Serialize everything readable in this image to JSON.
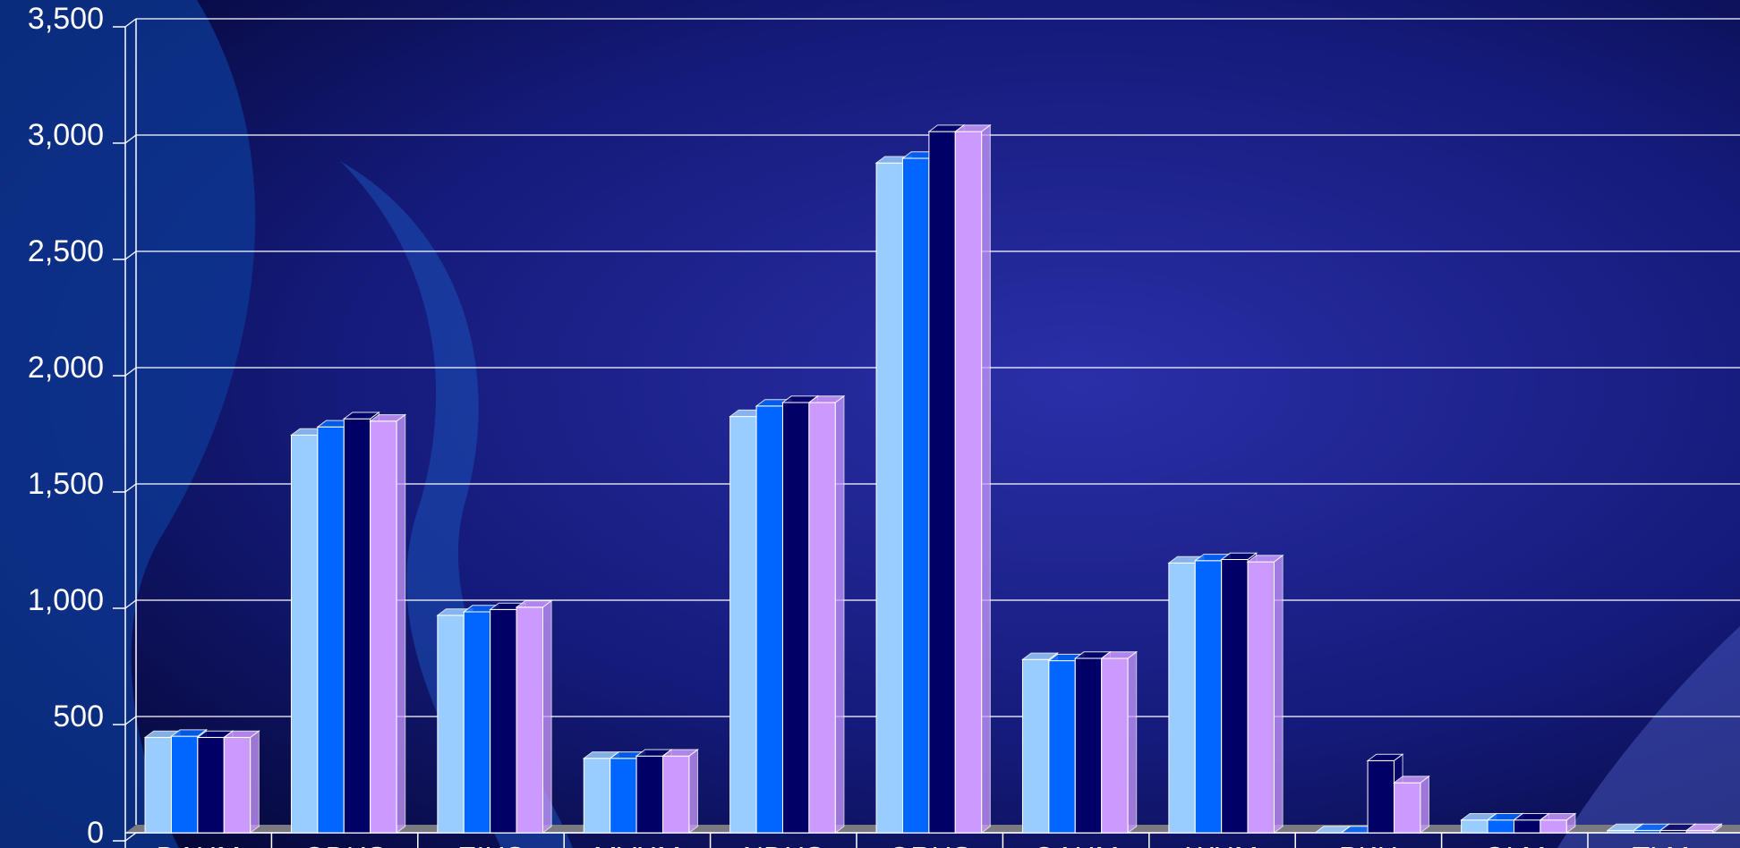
{
  "chart_data": {
    "type": "bar",
    "categories": [
      "DAHM",
      "ODHS",
      "EIHS",
      "MVHM",
      "NDHS",
      "ORHS",
      "OAHM",
      "WHM",
      "PKH",
      "OLM",
      "TLM"
    ],
    "series": [
      {
        "color": "#99ccff",
        "values": [
          410,
          1710,
          935,
          320,
          1790,
          2880,
          745,
          1160,
          0,
          55,
          10
        ]
      },
      {
        "color": "#0066ff",
        "values": [
          415,
          1745,
          950,
          320,
          1835,
          2900,
          740,
          1170,
          0,
          55,
          10
        ]
      },
      {
        "color": "#000066",
        "values": [
          410,
          1780,
          960,
          330,
          1850,
          3015,
          750,
          1175,
          310,
          55,
          10
        ]
      },
      {
        "color": "#cc99ff",
        "values": [
          410,
          1770,
          970,
          330,
          1850,
          3015,
          750,
          1165,
          215,
          55,
          10
        ]
      }
    ],
    "ylim": [
      0,
      3500
    ],
    "yticks": [
      0,
      500,
      {
        "value": 1000,
        "label": "1,000"
      },
      {
        "value": 1500,
        "label": "1,500"
      },
      {
        "value": 2000,
        "label": "2,000"
      },
      {
        "value": 2500,
        "label": "2,500"
      },
      {
        "value": 3000,
        "label": "3,000"
      },
      {
        "value": 3500,
        "label": "3,500"
      }
    ],
    "grid": true
  }
}
